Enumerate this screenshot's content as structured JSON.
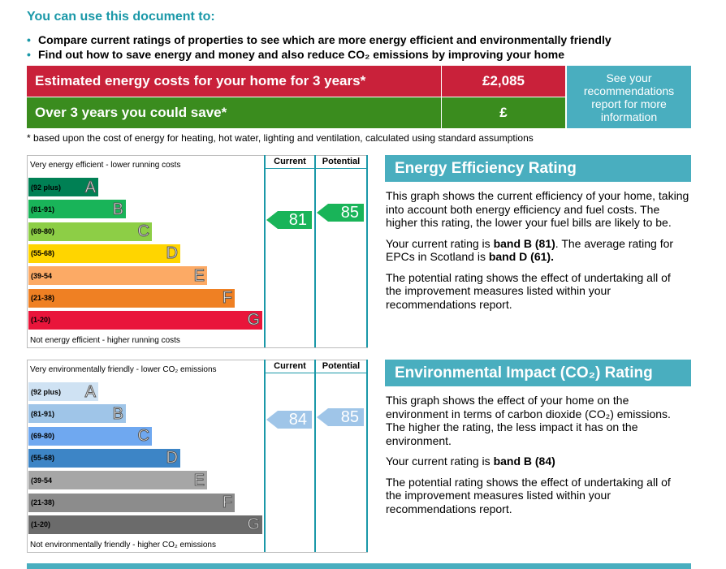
{
  "heading": "You can use this document to:",
  "bullets": [
    "Compare current ratings of properties to see which are more energy efficient and environmentally friendly",
    "Find out how to save energy and money and also reduce CO₂ emissions by improving your home"
  ],
  "costs": {
    "estimated_label": "Estimated energy costs for your home for 3 years*",
    "estimated_value": "£2,085",
    "save_label": "Over 3 years you could save*",
    "save_value": "£",
    "see_recommendations": "See your recommendations report for more information",
    "footnote": "* based upon the cost of energy for heating, hot water, lighting and ventilation, calculated using standard assumptions"
  },
  "energy_chart": {
    "top_label": "Very energy efficient - lower running costs",
    "bottom_label": "Not energy efficient - higher running costs",
    "current_header": "Current",
    "potential_header": "Potential",
    "bands": [
      {
        "range": "(92 plus)",
        "letter": "A",
        "color": "#008054"
      },
      {
        "range": "(81-91)",
        "letter": "B",
        "color": "#19b459"
      },
      {
        "range": "(69-80)",
        "letter": "C",
        "color": "#8dce46"
      },
      {
        "range": "(55-68)",
        "letter": "D",
        "color": "#ffd500"
      },
      {
        "range": "(39-54",
        "letter": "E",
        "color": "#fcaa65"
      },
      {
        "range": "(21-38)",
        "letter": "F",
        "color": "#ef8023"
      },
      {
        "range": "(1-20)",
        "letter": "G",
        "color": "#e9153b"
      }
    ],
    "current": {
      "value": "81",
      "color": "#19b459"
    },
    "potential": {
      "value": "85",
      "color": "#19b459"
    }
  },
  "energy_text": {
    "title": "Energy Efficiency Rating",
    "p1": "This graph shows the current efficiency of your home, taking into account both energy efficiency and fuel costs. The higher this rating, the lower your fuel bills are likely to be.",
    "p2_pre": "Your current rating is ",
    "p2_bold": "band B (81)",
    "p2_mid": ". The average rating for EPCs in Scotland is ",
    "p2_bold2": "band D (61).",
    "p3": "The potential rating shows the effect of undertaking all of the improvement measures listed within your recommendations report."
  },
  "env_chart": {
    "top_label": "Very environmentally friendly - lower CO₂ emissions",
    "bottom_label": "Not environmentally friendly - higher CO₂ emissions",
    "current_header": "Current",
    "potential_header": "Potential",
    "bands": [
      {
        "range": "(92 plus)",
        "letter": "A",
        "color": "#cfe2f3"
      },
      {
        "range": "(81-91)",
        "letter": "B",
        "color": "#9fc5e8"
      },
      {
        "range": "(69-80)",
        "letter": "C",
        "color": "#6fa8f0"
      },
      {
        "range": "(55-68)",
        "letter": "D",
        "color": "#3d85c6"
      },
      {
        "range": "(39-54",
        "letter": "E",
        "color": "#a6a6a6"
      },
      {
        "range": "(21-38)",
        "letter": "F",
        "color": "#8c8c8c"
      },
      {
        "range": "(1-20)",
        "letter": "G",
        "color": "#6b6b6b"
      }
    ],
    "current": {
      "value": "84",
      "color": "#9fc5e8"
    },
    "potential": {
      "value": "85",
      "color": "#9fc5e8"
    }
  },
  "env_text": {
    "title": "Environmental Impact (CO₂) Rating",
    "p1": "This graph shows the effect of your home on the environment in terms of carbon dioxide (CO₂) emissions. The higher the rating, the less impact it has on the environment.",
    "p2_pre": "Your current rating is ",
    "p2_bold": "band B (84)",
    "p3": "The potential rating shows the effect of undertaking all of the improvement measures listed within your recommendations report."
  },
  "colors": {
    "accent": "#1a98a8",
    "cost_red": "#c9213a",
    "save_green": "#3a8c1e",
    "see_box": "#49aebf"
  }
}
